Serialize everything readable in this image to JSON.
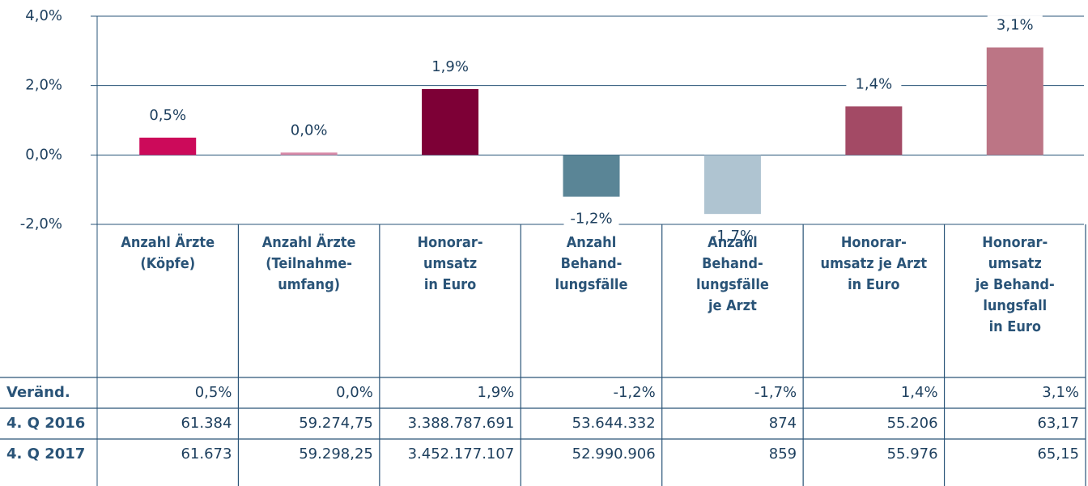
{
  "chart_data": {
    "type": "bar",
    "categories": [
      "Anzahl Ärzte\n(Köpfe)",
      "Anzahl Ärzte\n(Teilnahme-\numfang)",
      "Honorar-\numsatz\nin Euro",
      "Anzahl\nBehand-\nlungsfälle",
      "Anzahl\nBehand-\nlungsfälle\nje Arzt",
      "Honorar-\numsatz je Arzt\nin Euro",
      "Honorar-\numsatz\nje Behand-\nlungsfall\nin Euro"
    ],
    "values": [
      0.5,
      0.0,
      1.9,
      -1.2,
      -1.7,
      1.4,
      3.1
    ],
    "value_labels": [
      "0,5%",
      "0,0%",
      "1,9%",
      "-1,2%",
      "-1,7%",
      "1,4%",
      "3,1%"
    ],
    "colors": [
      "#cc0a5a",
      "#d98aa8",
      "#7d0036",
      "#5a8596",
      "#afc4d1",
      "#a34a65",
      "#bc7585"
    ],
    "ylim": [
      -2,
      4
    ],
    "yticks": [
      {
        "value": -2,
        "label": "-2,0%"
      },
      {
        "value": 0,
        "label": "0,0%"
      },
      {
        "value": 2,
        "label": "2,0%"
      },
      {
        "value": 4,
        "label": "4,0%"
      }
    ],
    "grid": true
  },
  "table": {
    "row_labels": [
      "Veränd.",
      "4. Q 2016",
      "4. Q 2017"
    ],
    "rows": [
      [
        "61.384",
        "59.274,75",
        "3.388.787.691",
        "53.644.332",
        "874",
        "55.206",
        "63,17"
      ],
      [
        "61.673",
        "59.298,25",
        "3.452.177.107",
        "52.990.906",
        "859",
        "55.976",
        "65,15"
      ]
    ]
  }
}
